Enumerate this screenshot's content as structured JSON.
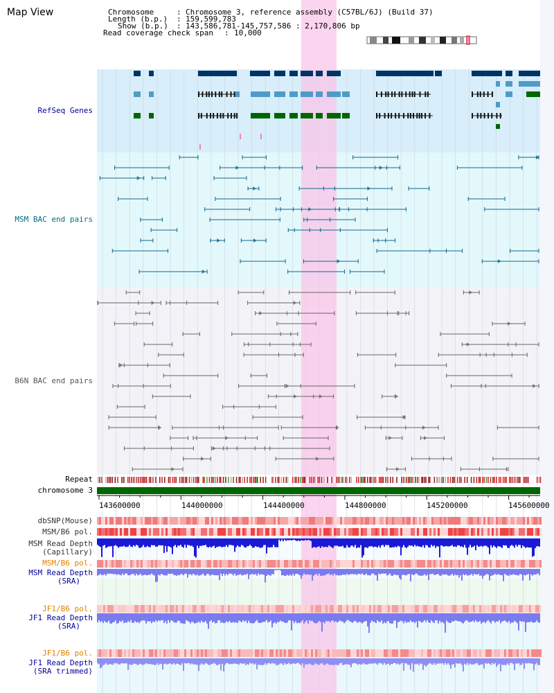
{
  "title": "Map View",
  "header": {
    "chromosome_key": "Chromosome",
    "chromosome_val": "Chromosome 3, reference assembly (C57BL/6J) (Build 37)",
    "length_key": "Length (b.p.)",
    "length_val": "159,599,783",
    "show_key": "Show (b.p.)",
    "show_val": "143,586,781-145,757,586 : 2,170,806 bp",
    "coverage_key": "Read coverage check span",
    "coverage_val": "10,000"
  },
  "tracks": {
    "refseq": "RefSeq Genes",
    "msm_bac": "MSM BAC end pairs",
    "b6n_bac": "B6N BAC end pairs",
    "repeat": "Repeat",
    "chromosome": "chromosome 3",
    "dbsnp": "dbSNP(Mouse)",
    "msm_b6_pol_1": "MSM/B6 pol.",
    "msm_depth_cap_1": "MSM Read Depth",
    "msm_depth_cap_2": "(Capillary)",
    "msm_b6_pol_2": "MSM/B6 pol.",
    "msm_depth_sra_1": "MSM Read Depth",
    "msm_depth_sra_2": "(SRA)",
    "jf1_b6_pol_1": "JF1/B6 pol.",
    "jf1_depth_sra_1": "JF1 Read Depth",
    "jf1_depth_sra_2": "(SRA)",
    "jf1_b6_pol_2": "JF1/B6 pol.",
    "jf1_depth_trim_1": "JF1 Read Depth",
    "jf1_depth_trim_2": "(SRA trimmed)"
  },
  "axis": {
    "ticks": [
      "143600000",
      "144000000",
      "144400000",
      "144800000",
      "145200000",
      "145600000"
    ]
  },
  "colors": {
    "highlight": "#f9c6ea",
    "refseq_bg": "#d8eefa",
    "msm_bg": "#e3f8fb",
    "b6n_bg": "#f2f2f6",
    "gene_dark": "#003366",
    "gene_mid": "#4f9bc8",
    "gene_green": "#006600",
    "msm_line": "#11668c",
    "b6n_line": "#666666",
    "label_blue": "#000099",
    "label_teal": "#006d80",
    "label_orange": "#e08000"
  }
}
